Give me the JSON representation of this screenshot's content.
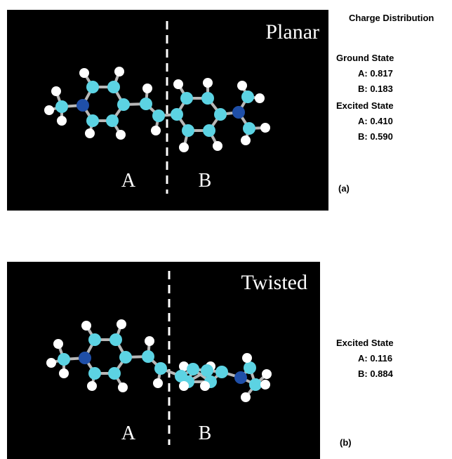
{
  "heading": "Charge Distribution",
  "panels": [
    {
      "title": "Planar",
      "region_a": "A",
      "region_b": "B",
      "label": "(a)",
      "states": [
        {
          "name": "Ground State",
          "a": "A: 0.817",
          "b": "B: 0.183"
        },
        {
          "name": "Excited State",
          "a": "A: 0.410",
          "b": "B: 0.590"
        }
      ]
    },
    {
      "title": "Twisted",
      "region_a": "A",
      "region_b": "B",
      "label": "(b)",
      "states": [
        {
          "name": "Excited State",
          "a": "A: 0.116",
          "b": "B: 0.884"
        }
      ]
    }
  ]
}
